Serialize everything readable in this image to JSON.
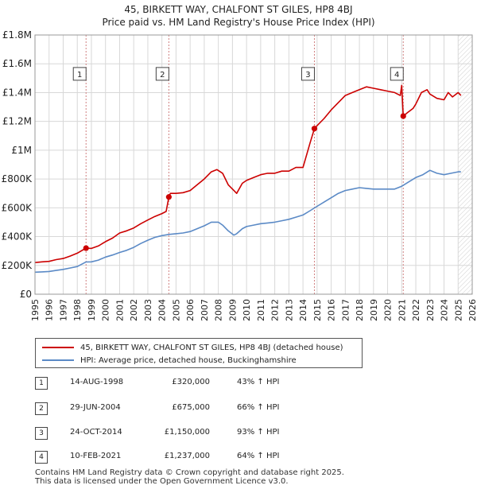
{
  "title_line1": "45, BIRKETT WAY, CHALFONT ST GILES, HP8 4BJ",
  "title_line2": "Price paid vs. HM Land Registry's House Price Index (HPI)",
  "colors": {
    "sales": "#cc0000",
    "hpi": "#5b8ac6",
    "grid": "#d8d8d8",
    "marker_line": "#d08080"
  },
  "chart_data": {
    "type": "line",
    "title": "45, BIRKETT WAY, CHALFONT ST GILES, HP8 4BJ — Price paid vs. HM Land Registry's House Price Index (HPI)",
    "xlabel": "",
    "ylabel": "",
    "xlim": [
      1995,
      2026
    ],
    "ylim": [
      0,
      1800000
    ],
    "x_ticks": [
      1995,
      1996,
      1997,
      1998,
      1999,
      2000,
      2001,
      2002,
      2003,
      2004,
      2005,
      2006,
      2007,
      2008,
      2009,
      2010,
      2011,
      2012,
      2013,
      2014,
      2015,
      2016,
      2017,
      2018,
      2019,
      2020,
      2021,
      2022,
      2023,
      2024,
      2025,
      2026
    ],
    "y_ticks": [
      {
        "value": 0,
        "label": "£0"
      },
      {
        "value": 200000,
        "label": "£200K"
      },
      {
        "value": 400000,
        "label": "£400K"
      },
      {
        "value": 600000,
        "label": "£600K"
      },
      {
        "value": 800000,
        "label": "£800K"
      },
      {
        "value": 1000000,
        "label": "£1M"
      },
      {
        "value": 1200000,
        "label": "£1.2M"
      },
      {
        "value": 1400000,
        "label": "£1.4M"
      },
      {
        "value": 1600000,
        "label": "£1.6M"
      },
      {
        "value": 1800000,
        "label": "£1.8M"
      }
    ],
    "future_shading_from": 2025.0,
    "series": [
      {
        "name": "45, BIRKETT WAY, CHALFONT ST GILES, HP8 4BJ (detached house)",
        "key": "sales",
        "x": [
          1995.0,
          1995.5,
          1996.0,
          1996.5,
          1997.0,
          1997.5,
          1998.0,
          1998.62,
          1999.0,
          1999.5,
          2000.0,
          2000.5,
          2001.0,
          2001.5,
          2002.0,
          2002.5,
          2003.0,
          2003.5,
          2004.0,
          2004.3,
          2004.49,
          2004.6,
          2005.0,
          2005.5,
          2006.0,
          2006.5,
          2007.0,
          2007.5,
          2007.9,
          2008.3,
          2008.7,
          2009.1,
          2009.3,
          2009.7,
          2010.0,
          2010.5,
          2011.0,
          2011.5,
          2012.0,
          2012.5,
          2013.0,
          2013.5,
          2014.0,
          2014.5,
          2014.81,
          2015.0,
          2015.5,
          2016.0,
          2016.5,
          2017.0,
          2017.5,
          2018.0,
          2018.5,
          2019.0,
          2019.5,
          2020.0,
          2020.5,
          2020.9,
          2021.0,
          2021.11,
          2021.4,
          2021.8,
          2022.0,
          2022.4,
          2022.8,
          2023.0,
          2023.5,
          2024.0,
          2024.3,
          2024.6,
          2025.0,
          2025.2
        ],
        "y": [
          220000,
          225000,
          228000,
          240000,
          248000,
          265000,
          285000,
          320000,
          318000,
          335000,
          365000,
          390000,
          425000,
          440000,
          460000,
          490000,
          515000,
          540000,
          560000,
          575000,
          675000,
          700000,
          700000,
          705000,
          720000,
          760000,
          800000,
          850000,
          865000,
          840000,
          760000,
          720000,
          700000,
          770000,
          790000,
          810000,
          830000,
          840000,
          840000,
          855000,
          855000,
          880000,
          880000,
          1050000,
          1150000,
          1170000,
          1220000,
          1280000,
          1330000,
          1380000,
          1400000,
          1420000,
          1440000,
          1430000,
          1420000,
          1410000,
          1400000,
          1380000,
          1450000,
          1237000,
          1260000,
          1290000,
          1320000,
          1400000,
          1420000,
          1390000,
          1360000,
          1350000,
          1400000,
          1370000,
          1400000,
          1380000
        ]
      },
      {
        "name": "HPI: Average price, detached house, Buckinghamshire",
        "key": "hpi",
        "x": [
          1995.0,
          1995.5,
          1996.0,
          1996.5,
          1997.0,
          1997.5,
          1998.0,
          1998.62,
          1999.0,
          1999.5,
          2000.0,
          2000.5,
          2001.0,
          2001.5,
          2002.0,
          2002.5,
          2003.0,
          2003.5,
          2004.0,
          2004.5,
          2005.0,
          2005.5,
          2006.0,
          2006.5,
          2007.0,
          2007.5,
          2008.0,
          2008.3,
          2008.7,
          2009.1,
          2009.3,
          2009.7,
          2010.0,
          2010.5,
          2011.0,
          2011.5,
          2012.0,
          2012.5,
          2013.0,
          2013.5,
          2014.0,
          2014.5,
          2015.0,
          2015.5,
          2016.0,
          2016.5,
          2017.0,
          2017.5,
          2018.0,
          2018.5,
          2019.0,
          2019.5,
          2020.0,
          2020.5,
          2021.0,
          2021.5,
          2022.0,
          2022.5,
          2023.0,
          2023.5,
          2024.0,
          2024.5,
          2025.0,
          2025.2
        ],
        "y": [
          153000,
          155000,
          158000,
          165000,
          172000,
          182000,
          192000,
          224000,
          225000,
          237000,
          258000,
          272000,
          290000,
          305000,
          325000,
          352000,
          375000,
          395000,
          407000,
          415000,
          420000,
          425000,
          435000,
          455000,
          475000,
          500000,
          500000,
          480000,
          440000,
          410000,
          420000,
          455000,
          470000,
          480000,
          490000,
          495000,
          500000,
          510000,
          520000,
          535000,
          550000,
          580000,
          610000,
          640000,
          670000,
          700000,
          720000,
          730000,
          740000,
          735000,
          730000,
          730000,
          730000,
          730000,
          750000,
          780000,
          810000,
          830000,
          860000,
          840000,
          830000,
          840000,
          850000,
          850000
        ]
      }
    ],
    "sales_markers": [
      {
        "label": "1",
        "x": 1998.62,
        "y": 320000
      },
      {
        "label": "2",
        "x": 2004.49,
        "y": 675000
      },
      {
        "label": "3",
        "x": 2014.81,
        "y": 1150000
      },
      {
        "label": "4",
        "x": 2021.11,
        "y": 1237000
      }
    ],
    "marker_box_level": 1530000
  },
  "legend": {
    "sales_label": "45, BIRKETT WAY, CHALFONT ST GILES, HP8 4BJ (detached house)",
    "hpi_label": "HPI: Average price, detached house, Buckinghamshire"
  },
  "sales_table": [
    {
      "num": "1",
      "date": "14-AUG-1998",
      "price": "£320,000",
      "hpi": "43% ↑ HPI"
    },
    {
      "num": "2",
      "date": "29-JUN-2004",
      "price": "£675,000",
      "hpi": "66% ↑ HPI"
    },
    {
      "num": "3",
      "date": "24-OCT-2014",
      "price": "£1,150,000",
      "hpi": "93% ↑ HPI"
    },
    {
      "num": "4",
      "date": "10-FEB-2021",
      "price": "£1,237,000",
      "hpi": "64% ↑ HPI"
    }
  ],
  "footer_line1": "Contains HM Land Registry data © Crown copyright and database right 2025.",
  "footer_line2": "This data is licensed under the Open Government Licence v3.0."
}
